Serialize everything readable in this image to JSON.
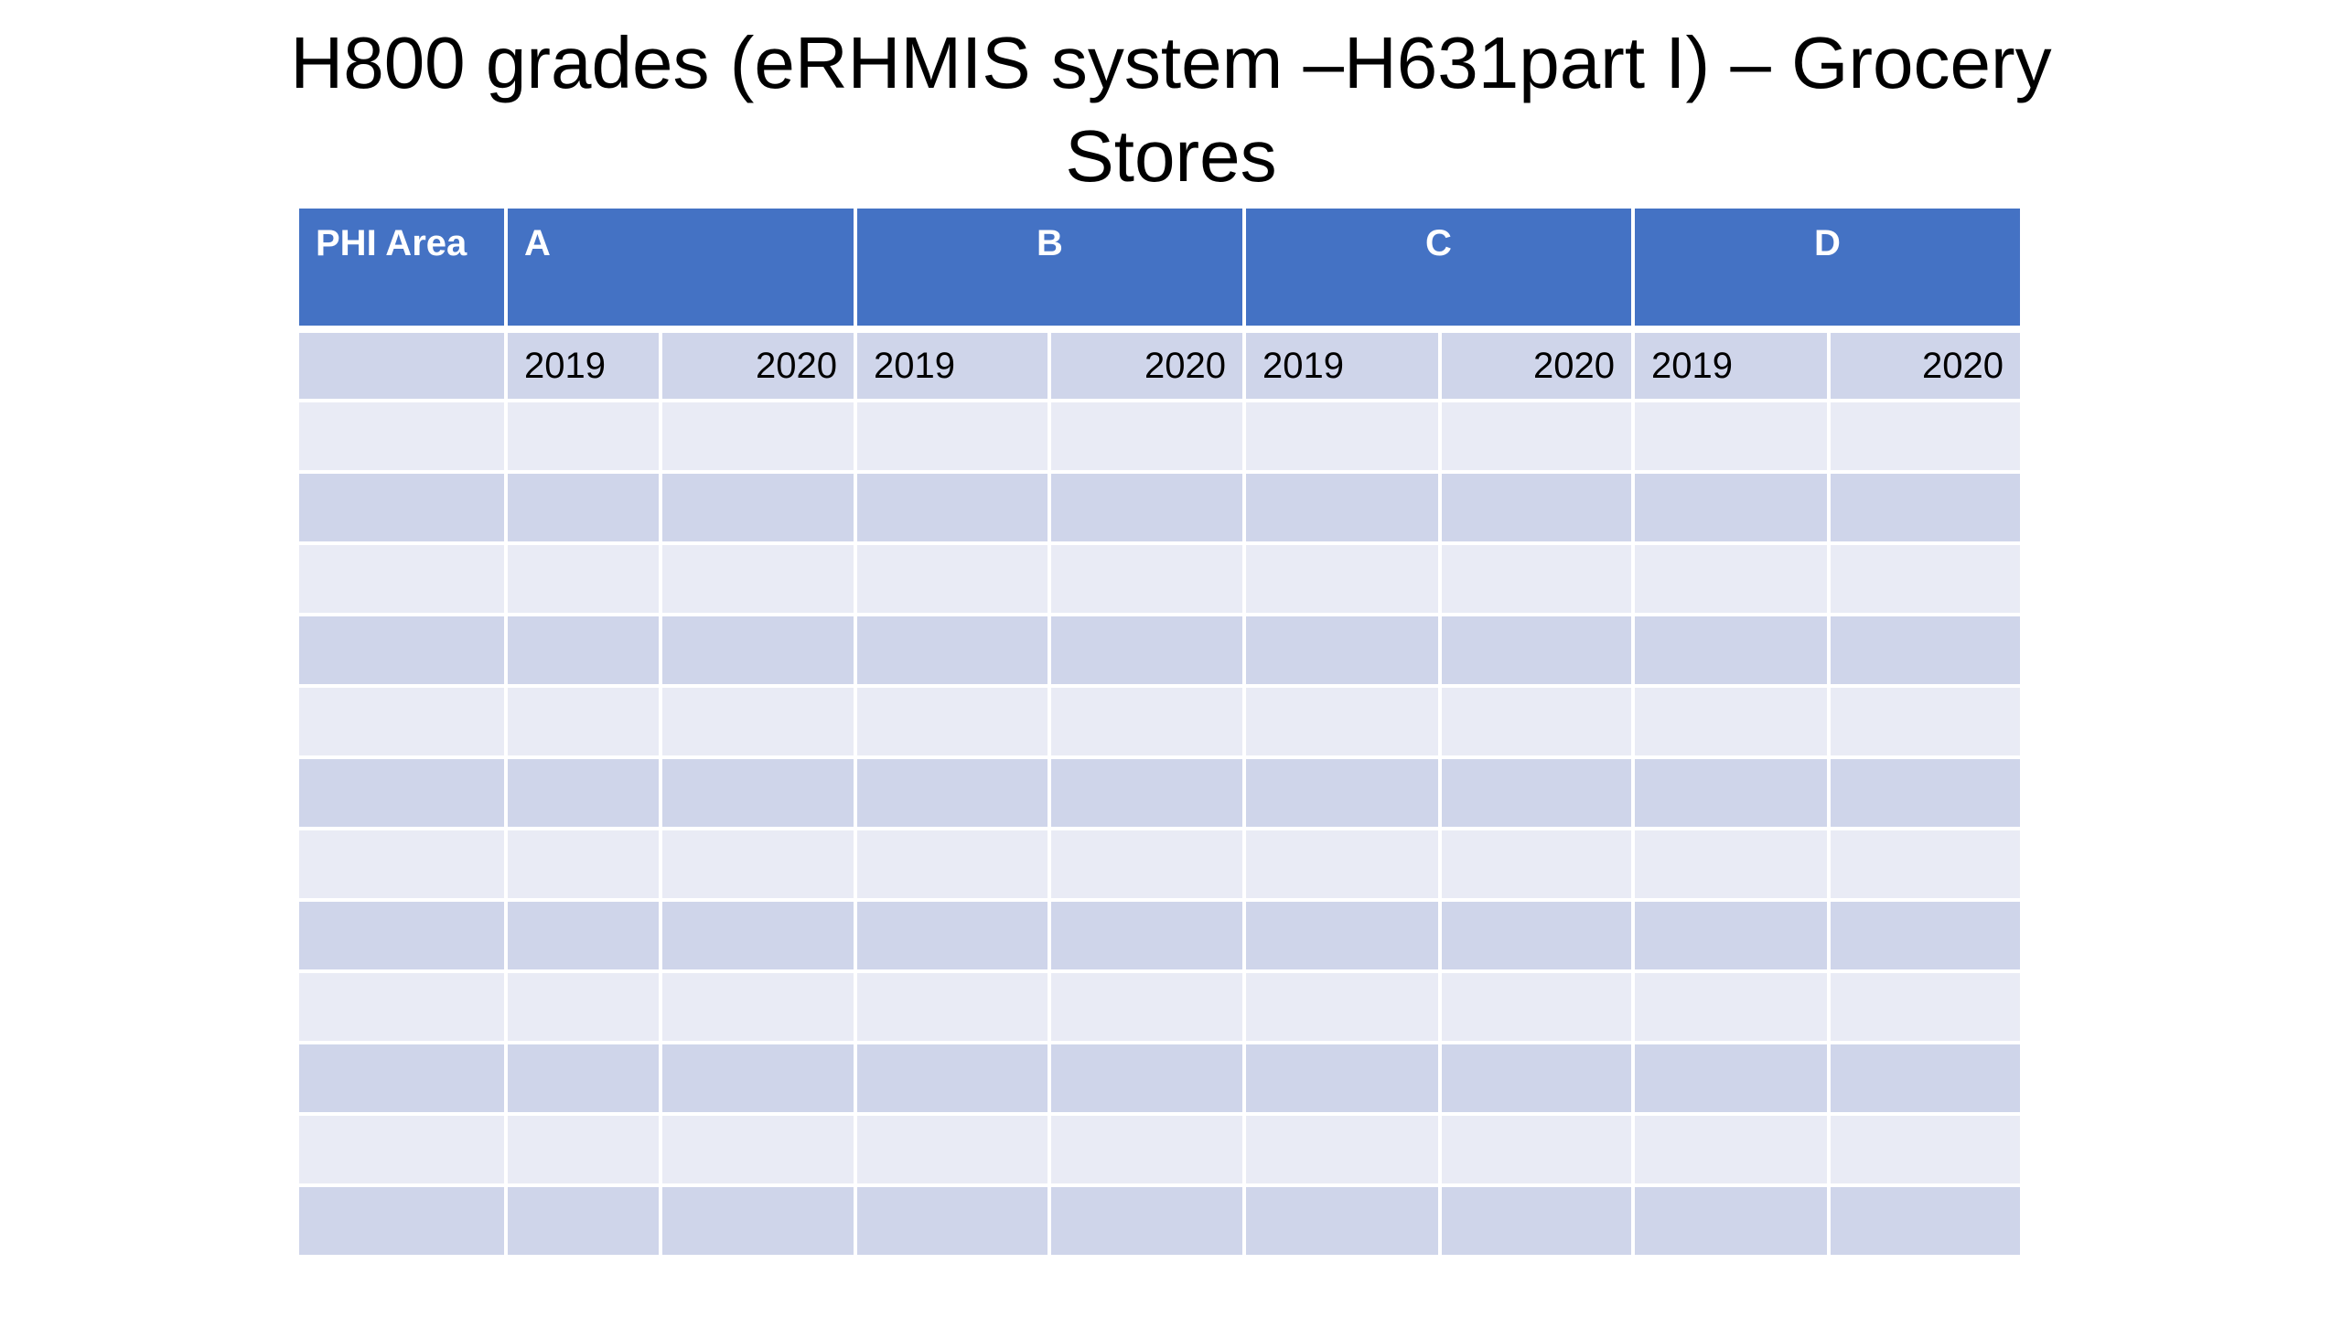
{
  "title": "H800 grades (eRHMIS system –H631part I) – Grocery Stores",
  "table": {
    "header": [
      "PHI Area",
      "A",
      "B",
      "C",
      "D"
    ],
    "years": [
      "2019",
      "2020",
      "2019",
      "2020",
      "2019",
      "2020",
      "2019",
      "2020"
    ]
  }
}
